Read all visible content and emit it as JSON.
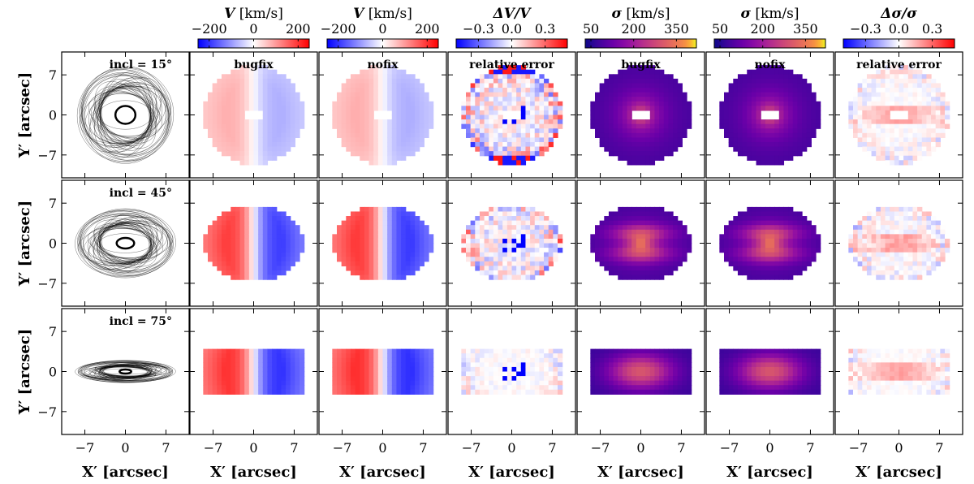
{
  "chart_data": {
    "type": "heatmap",
    "description_grid": "3 rows (inclinations) x 7 columns",
    "rows": [
      {
        "incl_label": "incl = 15°"
      },
      {
        "incl_label": "incl = 45°"
      },
      {
        "incl_label": "incl = 75°"
      }
    ],
    "columns": [
      {
        "key": "orbits",
        "colorbar": null,
        "panel_label": ""
      },
      {
        "key": "V_bugfix",
        "colorbar": {
          "title_sym": "V",
          "title_unit": "[km/s]",
          "ticks": [
            "−200",
            "0",
            "200"
          ],
          "tick_values": [
            -200,
            0,
            200
          ],
          "range": [
            -250,
            250
          ],
          "cmap": "bwr"
        },
        "panel_label": "bugfix"
      },
      {
        "key": "V_nofix",
        "colorbar": {
          "title_sym": "V",
          "title_unit": "[km/s]",
          "ticks": [
            "−200",
            "0",
            "200"
          ],
          "tick_values": [
            -200,
            0,
            200
          ],
          "range": [
            -250,
            250
          ],
          "cmap": "bwr"
        },
        "panel_label": "nofix"
      },
      {
        "key": "dV",
        "colorbar": {
          "title_sym": "ΔV/V",
          "title_unit": "",
          "ticks": [
            "−0.3",
            "0.0",
            "0.3"
          ],
          "tick_values": [
            -0.3,
            0.0,
            0.3
          ],
          "range": [
            -0.5,
            0.5
          ],
          "cmap": "bwr"
        },
        "panel_label": "relative error"
      },
      {
        "key": "sig_bugfix",
        "colorbar": {
          "title_sym": "σ",
          "title_unit": "[km/s]",
          "ticks": [
            "50",
            "200",
            "350"
          ],
          "tick_values": [
            50,
            200,
            350
          ],
          "range": [
            30,
            420
          ],
          "cmap": "plasma"
        },
        "panel_label": "bugfix"
      },
      {
        "key": "sig_nofix",
        "colorbar": {
          "title_sym": "σ",
          "title_unit": "[km/s]",
          "ticks": [
            "50",
            "200",
            "350"
          ],
          "tick_values": [
            50,
            200,
            350
          ],
          "range": [
            30,
            420
          ],
          "cmap": "plasma"
        },
        "panel_label": "nofix"
      },
      {
        "key": "dsig",
        "colorbar": {
          "title_sym": "Δσ/σ",
          "title_unit": "",
          "ticks": [
            "−0.3",
            "0.0",
            "0.3"
          ],
          "tick_values": [
            -0.3,
            0.0,
            0.3
          ],
          "range": [
            -0.5,
            0.5
          ],
          "cmap": "bwr"
        },
        "panel_label": "relative error"
      }
    ],
    "xlabel": "X′ [arcsec]",
    "ylabel": "Y′ [arcsec]",
    "xlim": [
      -11,
      11
    ],
    "ylim": [
      -11,
      11
    ],
    "x_ticks": [
      -7,
      0,
      7
    ],
    "y_ticks": [
      7,
      0,
      -7
    ],
    "x_tick_labels": [
      "−7",
      "0",
      "7"
    ],
    "y_tick_labels": [
      "7",
      "0",
      "−7"
    ]
  }
}
